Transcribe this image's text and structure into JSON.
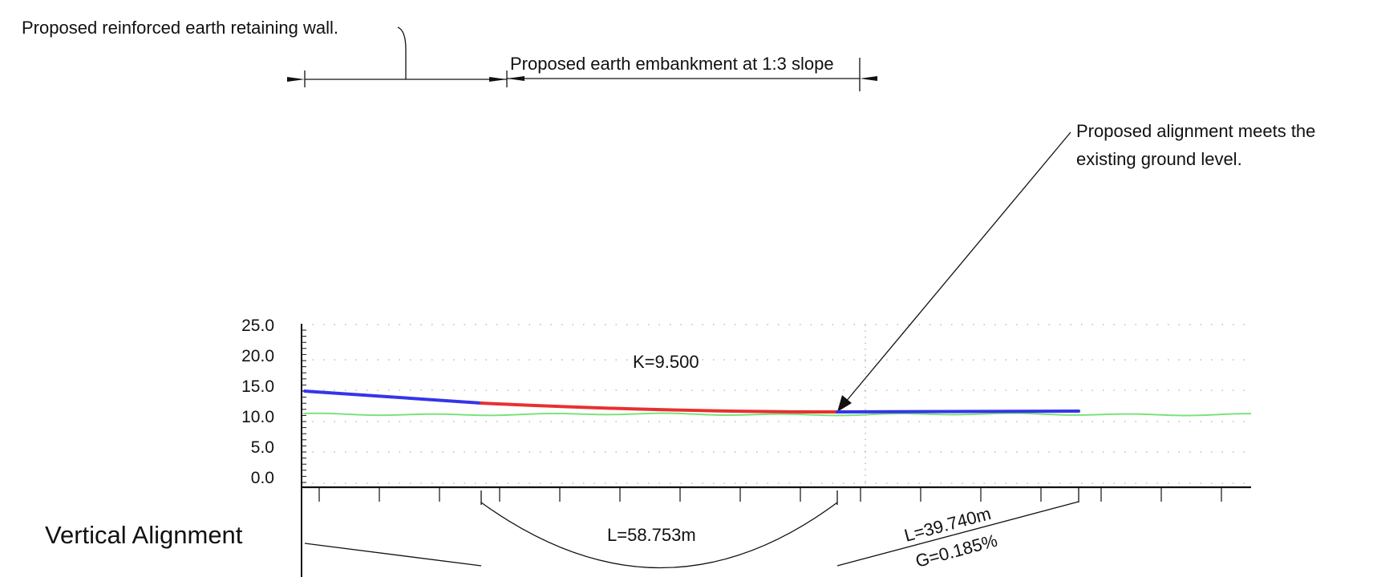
{
  "annotations": {
    "retaining_wall": "Proposed reinforced earth retaining wall.",
    "embankment": "Proposed earth embankment at 1:3 slope",
    "meets_ground_line1": "Proposed alignment meets the",
    "meets_ground_line2": "existing ground level.",
    "curve_k": "K=9.500"
  },
  "band": {
    "title": "Vertical Alignment",
    "curve_length": "L=58.753m",
    "tangent_length": "L=39.740m",
    "tangent_grade": "G=0.185%"
  },
  "colors": {
    "tangent": "#3535e8",
    "curve": "#e83030",
    "existing_ground": "#7ce27c",
    "linework": "#111111",
    "grid_dots": "#b0b0b0"
  },
  "chart_data": {
    "type": "line",
    "y_tick_labels": [
      "25.0",
      "20.0",
      "15.0",
      "10.0",
      "5.0",
      "0.0"
    ],
    "ylim": [
      0.0,
      25.0
    ],
    "grid": "dotted",
    "series": [
      {
        "role": "tangent-in",
        "color_key": "tangent",
        "y_start": 15.0,
        "y_end": 13.5
      },
      {
        "role": "vertical-curve",
        "color_key": "curve",
        "y_start": 13.5,
        "y_end": 12.3
      },
      {
        "role": "tangent-out",
        "color_key": "tangent",
        "y_start": 12.3,
        "y_end": 12.4
      },
      {
        "role": "existing-ground",
        "color_key": "existing_ground",
        "y_approx": 12.0
      }
    ]
  }
}
